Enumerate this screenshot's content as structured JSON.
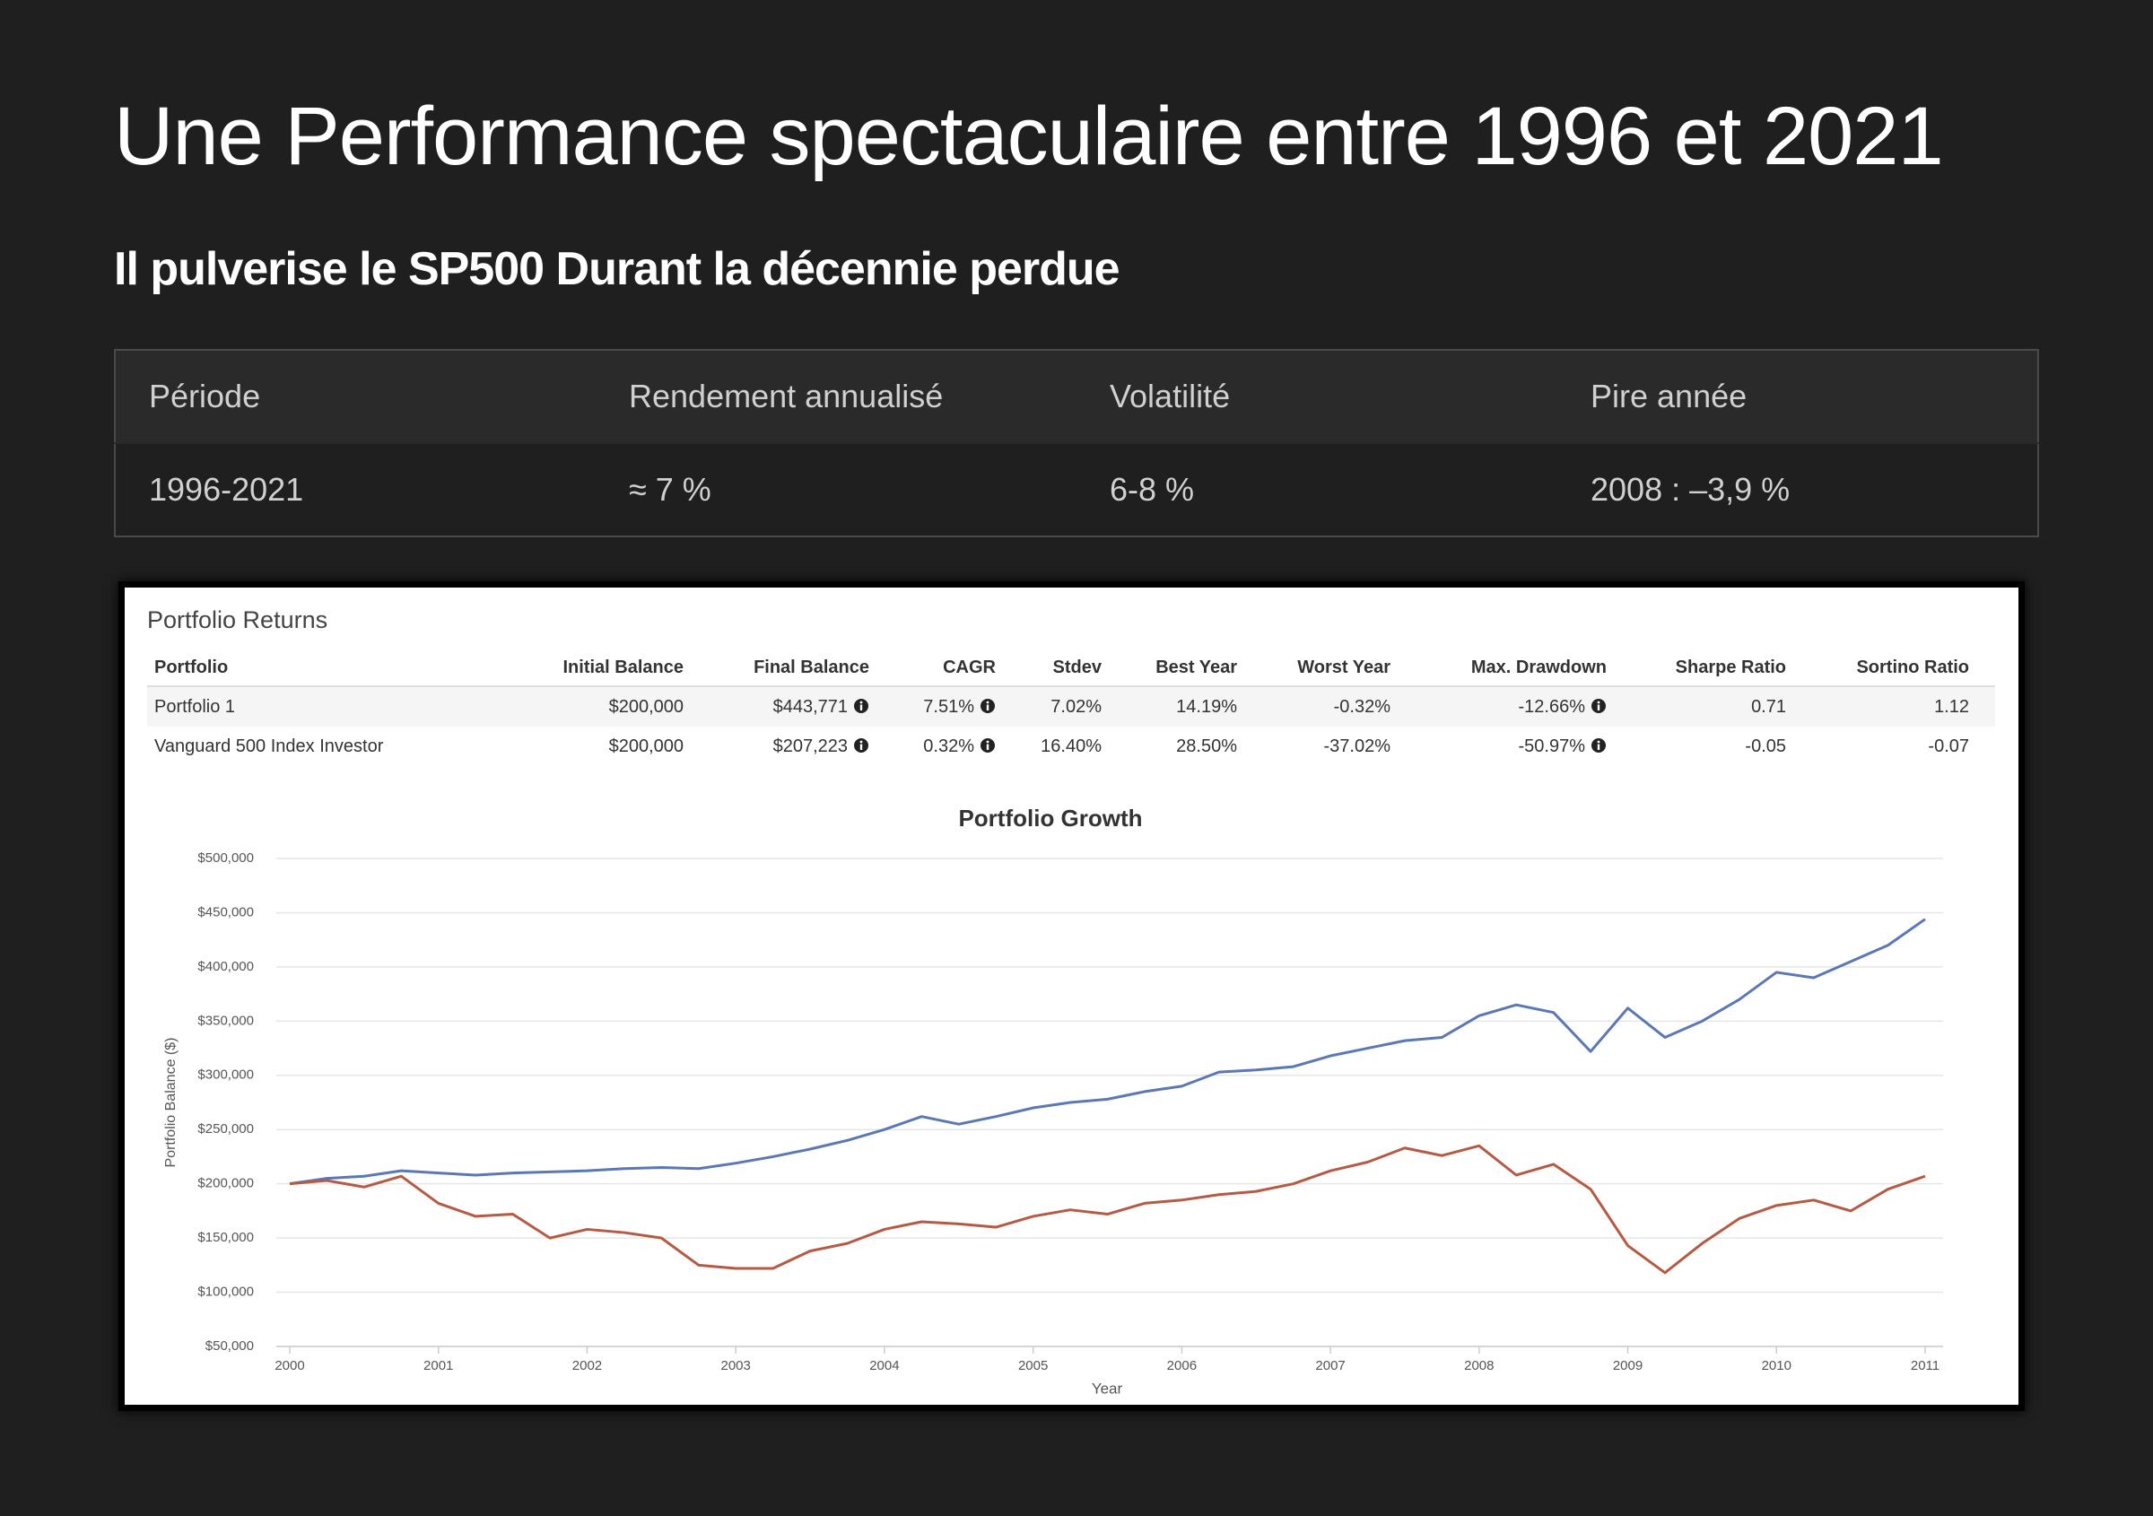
{
  "header": {
    "title": "Une Performance spectaculaire entre 1996 et 2021",
    "subtitle": "Il pulverise le SP500 Durant la décennie perdue"
  },
  "table": {
    "columns": [
      "Période",
      "Rendement annualisé",
      "Volatilité",
      "Pire année"
    ],
    "rows": [
      [
        "1996-2021",
        "≈ 7 %",
        "6-8 %",
        "2008 : –3,9 %"
      ]
    ]
  },
  "returns": {
    "title": "Portfolio Returns",
    "columns": [
      "Portfolio",
      "Initial Balance",
      "Final Balance",
      "CAGR",
      "Stdev",
      "Best Year",
      "Worst Year",
      "Max. Drawdown",
      "Sharpe Ratio",
      "Sortino Ratio"
    ],
    "rows": [
      [
        "Portfolio 1",
        "$200,000",
        "$443,771",
        "7.51%",
        "7.02%",
        "14.19%",
        "-0.32%",
        "-12.66%",
        "0.71",
        "1.12"
      ],
      [
        "Vanguard 500 Index Investor",
        "$200,000",
        "$207,223",
        "0.32%",
        "16.40%",
        "28.50%",
        "-37.02%",
        "-50.97%",
        "-0.05",
        "-0.07"
      ]
    ]
  },
  "chart_data": {
    "type": "line",
    "title": "Portfolio Growth",
    "x_label": "Year",
    "y_label": "Portfolio Balance ($)",
    "x": [
      2000,
      2000.25,
      2000.5,
      2000.75,
      2001,
      2001.25,
      2001.5,
      2001.75,
      2002,
      2002.25,
      2002.5,
      2002.75,
      2003,
      2003.25,
      2003.5,
      2003.75,
      2004,
      2004.25,
      2004.5,
      2004.75,
      2005,
      2005.25,
      2005.5,
      2005.75,
      2006,
      2006.25,
      2006.5,
      2006.75,
      2007,
      2007.25,
      2007.5,
      2007.75,
      2008,
      2008.25,
      2008.5,
      2008.75,
      2009,
      2009.25,
      2009.5,
      2009.75,
      2010,
      2010.25,
      2010.5,
      2010.75,
      2011
    ],
    "series": [
      {
        "color": "#5b78b5",
        "values": [
          200000,
          205000,
          207000,
          212000,
          210000,
          208000,
          210000,
          211000,
          212000,
          214000,
          215000,
          214000,
          219000,
          225000,
          232000,
          240000,
          250000,
          262000,
          255000,
          262000,
          270000,
          275000,
          278000,
          285000,
          290000,
          303000,
          305000,
          308000,
          318000,
          325000,
          332000,
          335000,
          355000,
          365000,
          358000,
          322000,
          362000,
          335000,
          350000,
          370000,
          395000,
          390000,
          405000,
          420000,
          444000
        ]
      },
      {
        "color": "#b55a45",
        "values": [
          200000,
          203000,
          197000,
          207000,
          182000,
          170000,
          172000,
          150000,
          158000,
          155000,
          150000,
          125000,
          122000,
          122000,
          138000,
          145000,
          158000,
          165000,
          163000,
          160000,
          170000,
          176000,
          172000,
          182000,
          185000,
          190000,
          193000,
          200000,
          212000,
          220000,
          233000,
          226000,
          235000,
          208000,
          218000,
          195000,
          143000,
          118000,
          145000,
          168000,
          180000,
          185000,
          175000,
          195000,
          207000
        ]
      }
    ],
    "xlim": [
      2000,
      2011
    ],
    "xticks": [
      2000,
      2001,
      2002,
      2003,
      2004,
      2005,
      2006,
      2007,
      2008,
      2009,
      2010,
      2011
    ],
    "ylim": [
      50000,
      500000
    ],
    "yticks": [
      {
        "value": 50000,
        "label": "$50,000"
      },
      {
        "value": 100000,
        "label": "$100,000"
      },
      {
        "value": 150000,
        "label": "$150,000"
      },
      {
        "value": 200000,
        "label": "$200,000"
      },
      {
        "value": 250000,
        "label": "$250,000"
      },
      {
        "value": 300000,
        "label": "$300,000"
      },
      {
        "value": 350000,
        "label": "$350,000"
      },
      {
        "value": 400000,
        "label": "$400,000"
      },
      {
        "value": 450000,
        "label": "$450,000"
      },
      {
        "value": 500000,
        "label": "$500,000"
      }
    ],
    "grid": true
  }
}
